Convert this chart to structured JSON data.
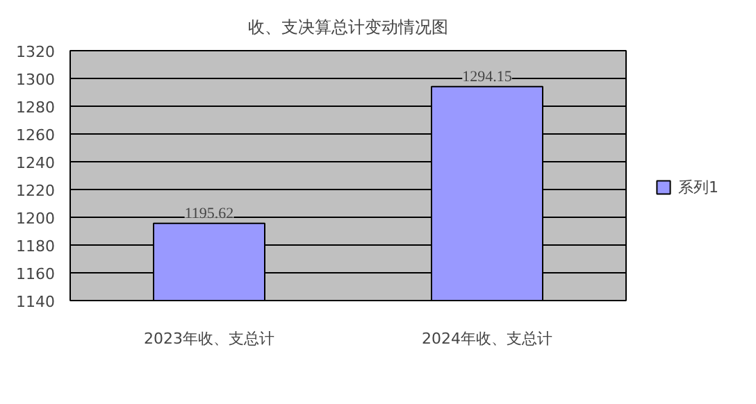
{
  "chart_data": {
    "type": "bar",
    "title": "收、支决算总计变动情况图",
    "categories": [
      "2023年收、支总计",
      "2024年收、支总计"
    ],
    "series": [
      {
        "name": "系列1",
        "color": "#9999ff",
        "values": [
          1195.62,
          1294.15
        ]
      }
    ],
    "ylim": [
      1140,
      1320
    ],
    "yticks": [
      1140,
      1160,
      1180,
      1200,
      1220,
      1240,
      1260,
      1280,
      1300,
      1320
    ],
    "grid": "y",
    "legend": "right",
    "data_labels": true
  }
}
